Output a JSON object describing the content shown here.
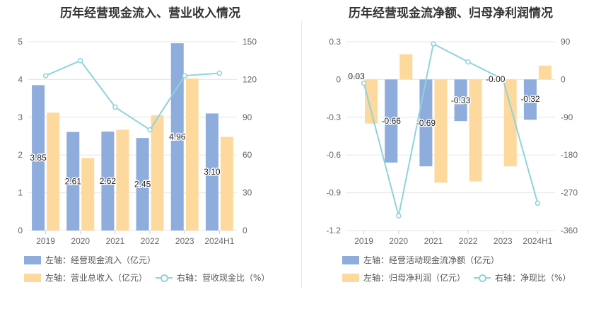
{
  "colors": {
    "bar_a": "#8eacdc",
    "bar_b": "#fed99d",
    "line": "#8fd3db",
    "grid": "#e6e6e6",
    "axis_text": "#666666"
  },
  "chart_data": [
    {
      "type": "bar",
      "title": "历年经营现金流入、营业收入情况",
      "categories": [
        "2019",
        "2020",
        "2021",
        "2022",
        "2023",
        "2024H1"
      ],
      "left_axis": {
        "ylim": [
          0,
          5
        ],
        "ticks": [
          "0",
          "1",
          "2",
          "3",
          "4",
          "5"
        ]
      },
      "right_axis": {
        "ylim": [
          0,
          150
        ],
        "ticks": [
          "0",
          "30",
          "60",
          "90",
          "120",
          "150"
        ]
      },
      "series": [
        {
          "name": "左轴：经营现金流入（亿元）",
          "kind": "bar",
          "axis": "left",
          "values": [
            3.85,
            2.61,
            2.62,
            2.45,
            4.96,
            3.1
          ],
          "labels": [
            "3.85",
            "2.61",
            "2.62",
            "2.45",
            "4.96",
            "3.10"
          ]
        },
        {
          "name": "左轴：营业总收入（亿元）",
          "kind": "bar",
          "axis": "left",
          "values": [
            3.12,
            1.92,
            2.67,
            3.05,
            4.03,
            2.48
          ]
        },
        {
          "name": "右轴：营收现金比（%）",
          "kind": "line",
          "axis": "right",
          "values": [
            123,
            135,
            98,
            80,
            123,
            125
          ]
        }
      ]
    },
    {
      "type": "bar",
      "title": "历年经营现金流净额、归母净利润情况",
      "categories": [
        "2019",
        "2020",
        "2021",
        "2022",
        "2023",
        "2024H1"
      ],
      "left_axis": {
        "ylim": [
          -1.2,
          0.3
        ],
        "ticks": [
          "-1.2",
          "-0.9",
          "-0.6",
          "-0.3",
          "0",
          "0.3"
        ]
      },
      "right_axis": {
        "ylim": [
          -360,
          90
        ],
        "ticks": [
          "-360",
          "-270",
          "-180",
          "-90",
          "0",
          "90"
        ]
      },
      "series": [
        {
          "name": "左轴：经营活动现金流净额（亿元）",
          "kind": "bar",
          "axis": "left",
          "values": [
            0.03,
            -0.66,
            -0.69,
            -0.33,
            -0.0,
            -0.32
          ],
          "labels": [
            "0.03",
            "-0.66",
            "-0.69",
            "-0.33",
            "-0.00",
            "-0.32"
          ]
        },
        {
          "name": "左轴：归母净利润（亿元）",
          "kind": "bar",
          "axis": "left",
          "values": [
            -0.35,
            0.2,
            -0.82,
            -0.81,
            -0.69,
            0.11
          ]
        },
        {
          "name": "右轴：净现比（%）",
          "kind": "line",
          "axis": "right",
          "values": [
            -9,
            -325,
            85,
            42,
            1,
            -295
          ]
        }
      ]
    }
  ]
}
